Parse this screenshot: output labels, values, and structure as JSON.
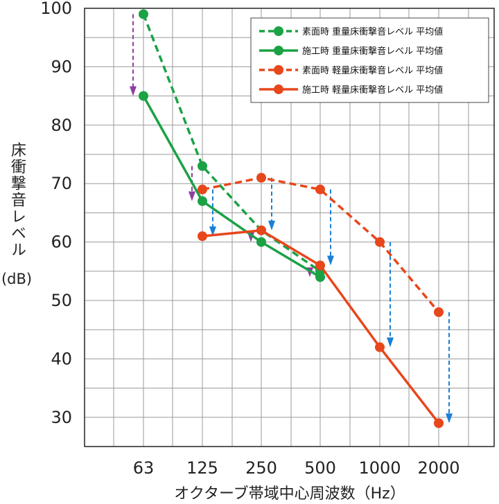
{
  "chart_data": {
    "type": "line",
    "categories": [
      "63",
      "125",
      "250",
      "500",
      "1000",
      "2000"
    ],
    "xlabel": "オクターブ帯域中心周波数（Hz）",
    "ylabel": "床衝撃音レベル",
    "yunit": "(dB)",
    "ylim": [
      25,
      100
    ],
    "yticks": [
      30,
      40,
      50,
      60,
      70,
      80,
      90,
      100
    ],
    "grid": true,
    "legend_position": "top-right",
    "series": [
      {
        "name": "素面時 重量床衝撃音レベル 平均値",
        "color": "#1aa245",
        "dashed": true,
        "values": [
          99,
          73,
          62,
          55,
          null,
          null
        ]
      },
      {
        "name": "施工時 重量床衝撃音レベル 平均値",
        "color": "#1aa245",
        "dashed": false,
        "values": [
          85,
          67,
          60,
          54,
          null,
          null
        ]
      },
      {
        "name": "素面時 軽量床衝撃音レベル 平均値",
        "color": "#e8461b",
        "dashed": true,
        "values": [
          null,
          69,
          71,
          69,
          60,
          48
        ]
      },
      {
        "name": "施工時 軽量床衝撃音レベル 平均値",
        "color": "#e8461b",
        "dashed": false,
        "values": [
          null,
          61,
          62,
          56,
          42,
          29
        ]
      }
    ],
    "arrows": {
      "heavy_color": "#8e3fa0",
      "light_color": "#1a7fd6"
    }
  }
}
